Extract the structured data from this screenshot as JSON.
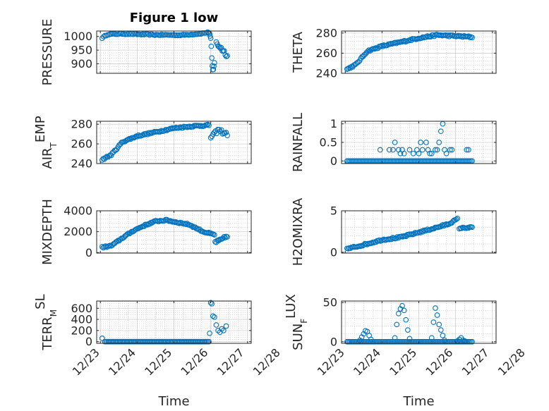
{
  "figure": {
    "title": "Figure 1 low",
    "marker_color": "#0072BD",
    "axis_color": "#262626",
    "grid_color": "#b0b0b0"
  },
  "chart_data": [
    {
      "id": "pressure",
      "type": "scatter",
      "title": "Figure 1 low",
      "ylabel": "PRESSURE",
      "ylabel_main": "PRESSURE",
      "ylabel_sub": "",
      "ylabel_tail": "",
      "xlabel": "",
      "xlim": [
        -0.1,
        4.1
      ],
      "ylim": [
        865,
        1020
      ],
      "xtick_values": [
        0,
        1,
        2,
        3,
        4
      ],
      "xtick_labels": [
        "12/23",
        "12/24",
        "12/25",
        "12/26",
        "12/27"
      ],
      "ytick_values": [
        900,
        950,
        1000
      ],
      "ytick_labels": [
        "900",
        "950",
        "1000"
      ],
      "grid": true,
      "segments": [
        {
          "x0": 0.05,
          "x1": 2.95,
          "n": 80,
          "knots": [
            [
              0.05,
              995
            ],
            [
              0.2,
              1008
            ],
            [
              0.6,
              1010
            ],
            [
              1.5,
              1006
            ],
            [
              2.2,
              1005
            ],
            [
              2.7,
              1010
            ],
            [
              2.95,
              1015
            ]
          ],
          "noise": 2
        },
        {
          "x0": 2.97,
          "x1": 3.1,
          "n": 10,
          "knots": [
            [
              2.97,
              1012
            ],
            [
              3.0,
              985
            ],
            [
              3.05,
              870
            ],
            [
              3.1,
              905
            ]
          ],
          "noise": 10
        },
        {
          "x0": 3.15,
          "x1": 3.45,
          "n": 12,
          "knots": [
            [
              3.15,
              975
            ],
            [
              3.3,
              955
            ],
            [
              3.45,
              930
            ]
          ],
          "noise": 8
        }
      ]
    },
    {
      "id": "theta",
      "type": "scatter",
      "ylabel": "THETA",
      "ylabel_main": "THETA",
      "ylabel_sub": "",
      "ylabel_tail": "",
      "xlabel": "",
      "xlim": [
        -0.1,
        4.1
      ],
      "ylim": [
        240,
        282
      ],
      "xtick_values": [
        0,
        1,
        2,
        3,
        4
      ],
      "xtick_labels": [
        "12/23",
        "12/24",
        "12/25",
        "12/26",
        "12/27"
      ],
      "ytick_values": [
        240,
        260,
        280
      ],
      "ytick_labels": [
        "240",
        "260",
        "280"
      ],
      "grid": true,
      "segments": [
        {
          "x0": 0.05,
          "x1": 3.45,
          "n": 110,
          "knots": [
            [
              0.05,
              244
            ],
            [
              0.3,
              249
            ],
            [
              0.6,
              262
            ],
            [
              1.0,
              267
            ],
            [
              1.5,
              271
            ],
            [
              2.0,
              275
            ],
            [
              2.5,
              278
            ],
            [
              3.0,
              277
            ],
            [
              3.45,
              276
            ]
          ],
          "noise": 0.8
        }
      ]
    },
    {
      "id": "air_temp",
      "type": "scatter",
      "ylabel": "AIR_TEMP",
      "ylabel_main": "AIR",
      "ylabel_sub": "T",
      "ylabel_tail": "EMP",
      "xlabel": "",
      "xlim": [
        -0.1,
        4.1
      ],
      "ylim": [
        240,
        283
      ],
      "xtick_values": [
        0,
        1,
        2,
        3,
        4
      ],
      "xtick_labels": [
        "12/23",
        "12/24",
        "12/25",
        "12/26",
        "12/27"
      ],
      "ytick_values": [
        240,
        260,
        280
      ],
      "ytick_labels": [
        "240",
        "260",
        "280"
      ],
      "grid": true,
      "segments": [
        {
          "x0": 0.05,
          "x1": 2.95,
          "n": 95,
          "knots": [
            [
              0.05,
              244
            ],
            [
              0.3,
              249
            ],
            [
              0.6,
              262
            ],
            [
              1.0,
              268
            ],
            [
              1.5,
              272
            ],
            [
              2.0,
              276
            ],
            [
              2.5,
              278
            ],
            [
              2.95,
              279
            ]
          ],
          "noise": 0.8
        },
        {
          "x0": 3.0,
          "x1": 3.45,
          "n": 15,
          "knots": [
            [
              3.0,
              267
            ],
            [
              3.1,
              270
            ],
            [
              3.2,
              274
            ],
            [
              3.45,
              270
            ]
          ],
          "noise": 2
        }
      ]
    },
    {
      "id": "rainfall",
      "type": "scatter",
      "ylabel": "RAINFALL",
      "ylabel_main": "RAINFALL",
      "ylabel_sub": "",
      "ylabel_tail": "",
      "xlabel": "",
      "xlim": [
        -0.1,
        4.1
      ],
      "ylim": [
        -0.07,
        1.07
      ],
      "xtick_values": [
        0,
        1,
        2,
        3,
        4
      ],
      "xtick_labels": [
        "12/23",
        "12/24",
        "12/25",
        "12/26",
        "12/27"
      ],
      "ytick_values": [
        0,
        0.5,
        1
      ],
      "ytick_labels": [
        "0",
        "0.5",
        "1"
      ],
      "grid": true,
      "segments": [
        {
          "x0": 0.05,
          "x1": 3.45,
          "n": 90,
          "knots": [
            [
              0.05,
              0
            ],
            [
              3.45,
              0
            ]
          ],
          "noise": 0
        }
      ],
      "points": [
        [
          0.95,
          0.3
        ],
        [
          1.2,
          0.3
        ],
        [
          1.3,
          0.3
        ],
        [
          1.35,
          0.5
        ],
        [
          1.45,
          0.3
        ],
        [
          1.5,
          0.2
        ],
        [
          1.55,
          0.3
        ],
        [
          1.6,
          0.2
        ],
        [
          1.75,
          0.3
        ],
        [
          1.85,
          0.2
        ],
        [
          1.95,
          0.3
        ],
        [
          2.0,
          0.2
        ],
        [
          2.05,
          0.5
        ],
        [
          2.1,
          0.3
        ],
        [
          2.2,
          0.5
        ],
        [
          2.25,
          0.3
        ],
        [
          2.3,
          0.2
        ],
        [
          2.35,
          0.2
        ],
        [
          2.45,
          0.3
        ],
        [
          2.5,
          0.3
        ],
        [
          2.55,
          0.5
        ],
        [
          2.6,
          0.8
        ],
        [
          2.65,
          1.0
        ],
        [
          2.7,
          0.3
        ],
        [
          2.75,
          0.2
        ],
        [
          2.85,
          0.3
        ],
        [
          2.9,
          0.3
        ],
        [
          3.3,
          0.3
        ],
        [
          3.35,
          0.3
        ]
      ]
    },
    {
      "id": "mixdepth",
      "type": "scatter",
      "ylabel": "MIXDEPTH",
      "ylabel_main": "MIXDEPTH",
      "ylabel_sub": "",
      "ylabel_tail": "",
      "xlabel": "",
      "xlim": [
        -0.1,
        4.1
      ],
      "ylim": [
        -50,
        4000
      ],
      "xtick_values": [
        0,
        1,
        2,
        3,
        4
      ],
      "xtick_labels": [
        "12/23",
        "12/24",
        "12/25",
        "12/26",
        "12/27"
      ],
      "ytick_values": [
        0,
        2000,
        4000
      ],
      "ytick_labels": [
        "0",
        "2000",
        "4000"
      ],
      "grid": true,
      "segments": [
        {
          "x0": 0.05,
          "x1": 3.1,
          "n": 100,
          "knots": [
            [
              0.05,
              500
            ],
            [
              0.3,
              650
            ],
            [
              0.6,
              1400
            ],
            [
              0.9,
              2100
            ],
            [
              1.2,
              2600
            ],
            [
              1.5,
              3000
            ],
            [
              1.8,
              3100
            ],
            [
              2.0,
              2950
            ],
            [
              2.4,
              2700
            ],
            [
              2.8,
              2000
            ],
            [
              3.1,
              1700
            ]
          ],
          "noise": 70
        },
        {
          "x0": 3.12,
          "x1": 3.45,
          "n": 12,
          "knots": [
            [
              3.12,
              1000
            ],
            [
              3.25,
              1150
            ],
            [
              3.45,
              1600
            ]
          ],
          "noise": 120
        }
      ]
    },
    {
      "id": "h2omixra",
      "type": "scatter",
      "ylabel": "H2OMIXRA",
      "ylabel_main": "H2OMIXRA",
      "ylabel_sub": "",
      "ylabel_tail": "",
      "xlabel": "",
      "xlim": [
        -0.1,
        4.1
      ],
      "ylim": [
        -0.1,
        5
      ],
      "xtick_values": [
        0,
        1,
        2,
        3,
        4
      ],
      "xtick_labels": [
        "12/23",
        "12/24",
        "12/25",
        "12/26",
        "12/27"
      ],
      "ytick_values": [
        0,
        5
      ],
      "ytick_labels": [
        "0",
        "5"
      ],
      "grid": true,
      "segments": [
        {
          "x0": 0.05,
          "x1": 3.05,
          "n": 100,
          "knots": [
            [
              0.05,
              0.4
            ],
            [
              0.5,
              0.9
            ],
            [
              1.0,
              1.5
            ],
            [
              1.5,
              1.8
            ],
            [
              2.0,
              2.4
            ],
            [
              2.5,
              3.0
            ],
            [
              2.8,
              3.4
            ],
            [
              3.05,
              4.0
            ]
          ],
          "noise": 0.1
        },
        {
          "x0": 3.1,
          "x1": 3.45,
          "n": 12,
          "knots": [
            [
              3.1,
              2.9
            ],
            [
              3.45,
              3.0
            ]
          ],
          "noise": 0.08
        }
      ]
    },
    {
      "id": "terr_msl",
      "type": "scatter",
      "ylabel": "TERR_MSL",
      "ylabel_main": "TERR",
      "ylabel_sub": "M",
      "ylabel_tail": "SL",
      "xlabel": "Time",
      "xlim": [
        -0.1,
        4.1
      ],
      "ylim": [
        -30,
        730
      ],
      "xtick_values": [
        0,
        1,
        2,
        3,
        4,
        5
      ],
      "xtick_labels": [
        "12/23",
        "12/24",
        "12/25",
        "12/26",
        "12/27",
        "12/28"
      ],
      "ytick_values": [
        0,
        200,
        400,
        600
      ],
      "ytick_labels": [
        "0",
        "200",
        "400",
        "600"
      ],
      "grid": true,
      "segments": [
        {
          "x0": 0.12,
          "x1": 2.95,
          "n": 90,
          "knots": [
            [
              0.12,
              0
            ],
            [
              2.95,
              0
            ]
          ],
          "noise": 0
        }
      ],
      "points": [
        [
          0.05,
          60
        ],
        [
          2.97,
          150
        ],
        [
          3.0,
          700
        ],
        [
          3.03,
          680
        ],
        [
          3.06,
          460
        ],
        [
          3.1,
          440
        ],
        [
          3.15,
          300
        ],
        [
          3.2,
          200
        ],
        [
          3.25,
          170
        ],
        [
          3.3,
          230
        ],
        [
          3.35,
          200
        ],
        [
          3.42,
          280
        ]
      ]
    },
    {
      "id": "sun_flux",
      "type": "scatter",
      "ylabel": "SUN_FLUX",
      "ylabel_main": "SUN",
      "ylabel_sub": "F",
      "ylabel_tail": "LUX",
      "xlabel": "Time",
      "xlim": [
        -0.1,
        4.1
      ],
      "ylim": [
        -2,
        52
      ],
      "xtick_values": [
        0,
        1,
        2,
        3,
        4,
        5
      ],
      "xtick_labels": [
        "12/23",
        "12/24",
        "12/25",
        "12/26",
        "12/27",
        "12/28"
      ],
      "ytick_values": [
        0,
        50
      ],
      "ytick_labels": [
        "0",
        "50"
      ],
      "grid": true,
      "segments": [
        {
          "x0": 0.05,
          "x1": 3.45,
          "n": 95,
          "knots": [
            [
              0.05,
              0
            ],
            [
              3.45,
              0
            ]
          ],
          "noise": 0
        }
      ],
      "points": [
        [
          0.4,
          2
        ],
        [
          0.45,
          6
        ],
        [
          0.5,
          10
        ],
        [
          0.55,
          14
        ],
        [
          0.6,
          13
        ],
        [
          0.65,
          8
        ],
        [
          0.7,
          3
        ],
        [
          1.35,
          5
        ],
        [
          1.4,
          22
        ],
        [
          1.45,
          36
        ],
        [
          1.5,
          42
        ],
        [
          1.55,
          46
        ],
        [
          1.6,
          40
        ],
        [
          1.65,
          28
        ],
        [
          1.7,
          15
        ],
        [
          1.75,
          4
        ],
        [
          2.35,
          5
        ],
        [
          2.4,
          25
        ],
        [
          2.45,
          43
        ],
        [
          2.5,
          34
        ],
        [
          2.55,
          22
        ],
        [
          2.6,
          15
        ],
        [
          2.65,
          8
        ],
        [
          2.7,
          2
        ],
        [
          3.05,
          1
        ],
        [
          3.1,
          3
        ],
        [
          3.15,
          5
        ],
        [
          3.2,
          2
        ],
        [
          3.25,
          1
        ]
      ]
    }
  ]
}
